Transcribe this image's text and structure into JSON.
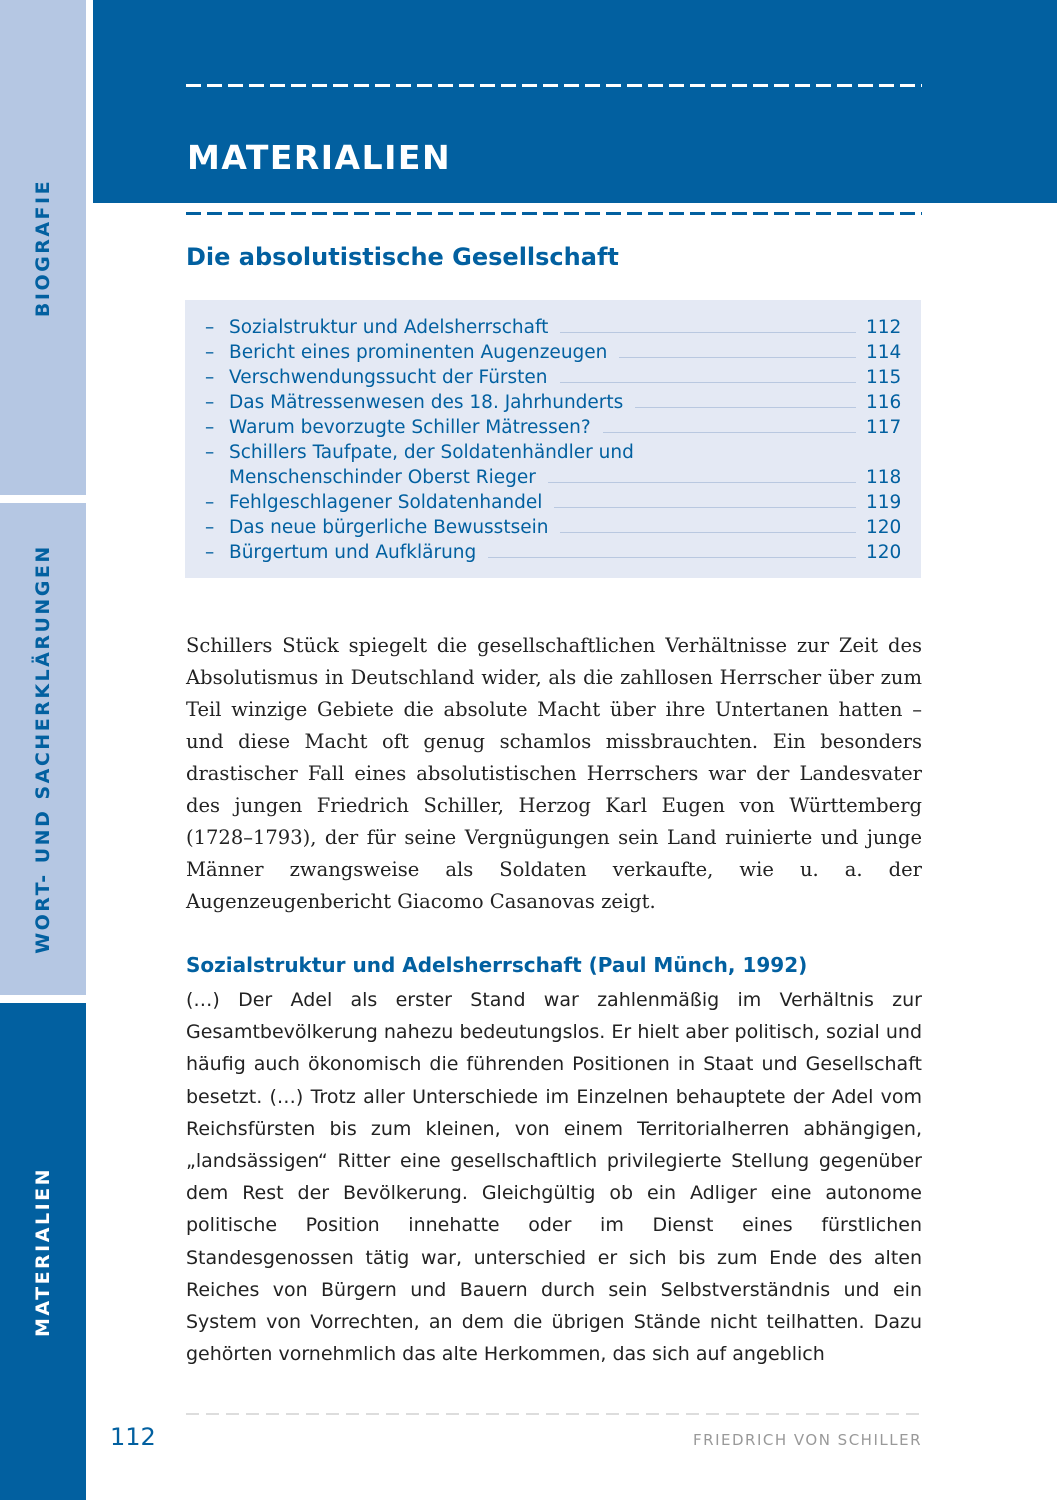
{
  "sidebar": {
    "tabs": [
      {
        "label": "BIOGRAFIE",
        "active": false
      },
      {
        "label": "WORT- UND SACHERKLÄRUNGEN",
        "active": false
      },
      {
        "label": "MATERIALIEN",
        "active": true
      }
    ]
  },
  "header": {
    "title": "MATERIALIEN"
  },
  "section": {
    "title": "Die absolutistische Gesellschaft"
  },
  "toc": [
    {
      "dash": "–",
      "label": "Sozialstruktur und Adelsherrschaft",
      "page": "112"
    },
    {
      "dash": "–",
      "label": "Bericht eines prominenten Augenzeugen",
      "page": "114"
    },
    {
      "dash": "–",
      "label": "Verschwendungssucht der Fürsten",
      "page": "115"
    },
    {
      "dash": "–",
      "label": "Das Mätressenwesen des 18. Jahrhunderts",
      "page": "116"
    },
    {
      "dash": "–",
      "label": "Warum bevorzugte Schiller Mätressen?",
      "page": "117"
    },
    {
      "dash": "–",
      "label": "Schillers Taufpate, der Soldatenhändler und",
      "page": ""
    },
    {
      "dash": "",
      "label": "Menschenschinder Oberst Rieger",
      "page": "118"
    },
    {
      "dash": "–",
      "label": "Fehlgeschlagener Soldatenhandel",
      "page": "119"
    },
    {
      "dash": "–",
      "label": "Das neue bürgerliche Bewusstsein",
      "page": "120"
    },
    {
      "dash": "–",
      "label": "Bürgertum und Aufklärung",
      "page": "120"
    }
  ],
  "intro": "Schillers Stück spiegelt die gesellschaftlichen Verhältnisse zur Zeit des Absolutismus in Deutschland wider, als die zahllosen Herrscher über zum Teil winzige Gebiete die absolute Macht über ihre Untertanen hatten – und diese Macht oft genug schamlos missbrauchten. Ein besonders drastischer Fall eines absolutistischen Herrschers war der Landesvater des jungen Friedrich Schiller, Herzog Karl Eugen von Württemberg (1728–1793), der für seine Vergnügungen sein Land ruinierte und junge Männer zwangsweise als Soldaten verkaufte, wie u. a. der Augenzeugenbericht Giacomo Casanovas zeigt.",
  "material": {
    "title": "Sozialstruktur und Adelsherrschaft (Paul Münch, 1992)",
    "text": "(…) Der Adel als erster Stand war zahlenmäßig im Verhältnis zur Gesamtbevölkerung nahezu bedeutungslos. Er hielt aber politisch, sozial und häufig auch ökonomisch die führenden Positionen in Staat und Gesellschaft besetzt. (…) Trotz aller Unterschiede im Einzelnen behauptete der Adel vom Reichsfürsten bis zum kleinen, von einem Territorialherren abhängigen, „landsässigen“ Ritter eine gesellschaftlich privilegierte Stellung gegenüber dem Rest der Bevölkerung. Gleichgültig ob ein Adliger eine autonome politische Position innehatte oder im Dienst eines fürstlichen Standesgenossen tätig war, unterschied er sich bis zum Ende des alten Reiches von Bürgern und Bauern durch sein Selbstverständnis und ein System von Vorrechten, an dem die übrigen Stände nicht teilhatten. Dazu gehörten vornehmlich das alte Herkommen, das sich auf angeblich"
  },
  "footer": {
    "page_number": "112",
    "author": "FRIEDRICH VON SCHILLER"
  },
  "colors": {
    "primary": "#0260a0",
    "tab_light": "#b5c7e3",
    "toc_bg": "#e4e9f4"
  }
}
